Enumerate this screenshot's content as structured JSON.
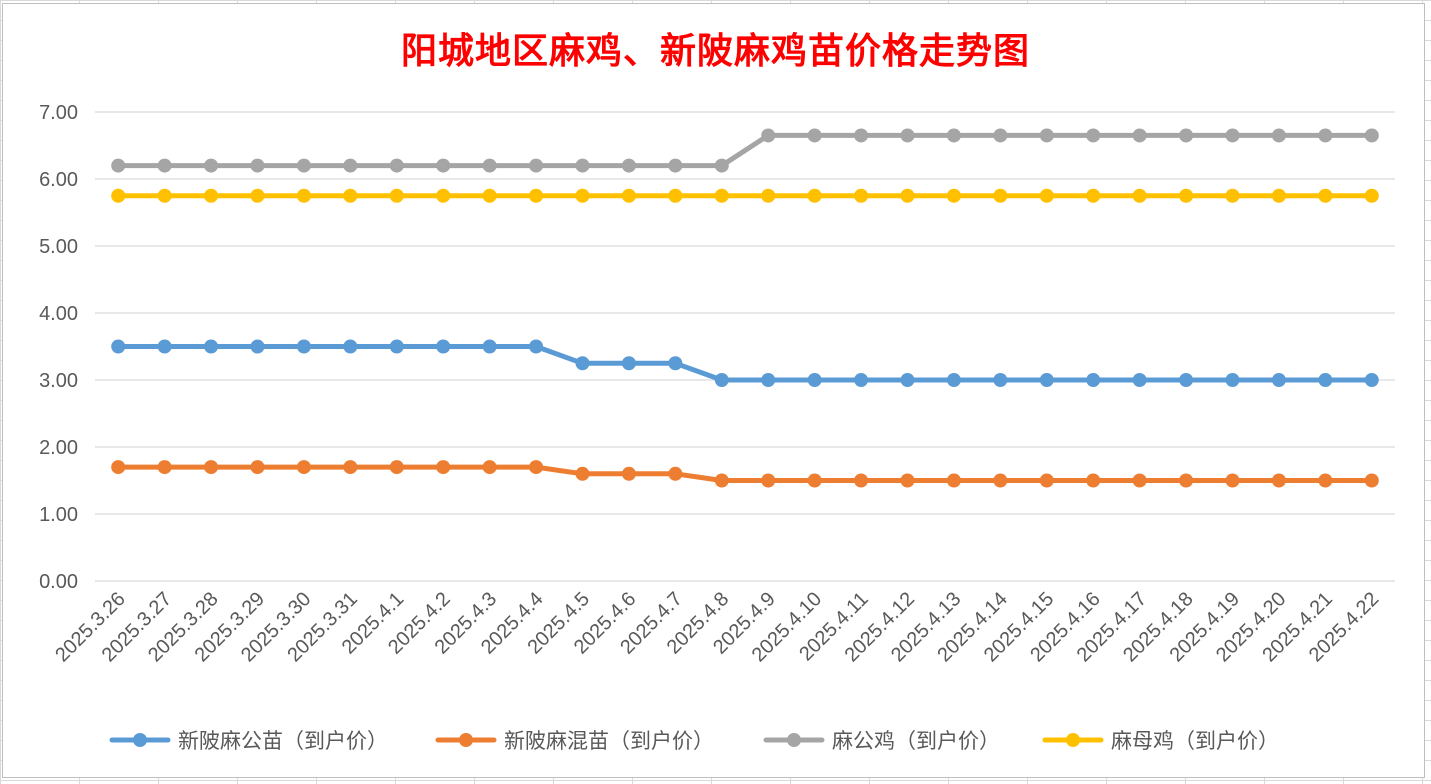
{
  "chart_data": {
    "type": "line",
    "title": "阳城地区麻鸡、新陂麻鸡苗价格走势图",
    "xlabel": "",
    "ylabel": "",
    "ylim": [
      0,
      7
    ],
    "y_ticks": [
      "0.00",
      "1.00",
      "2.00",
      "3.00",
      "4.00",
      "5.00",
      "6.00",
      "7.00"
    ],
    "grid": true,
    "legend_position": "bottom",
    "categories": [
      "2025.3.26",
      "2025.3.27",
      "2025.3.28",
      "2025.3.29",
      "2025.3.30",
      "2025.3.31",
      "2025.4.1",
      "2025.4.2",
      "2025.4.3",
      "2025.4.4",
      "2025.4.5",
      "2025.4.6",
      "2025.4.7",
      "2025.4.8",
      "2025.4.9",
      "2025.4.10",
      "2025.4.11",
      "2025.4.12",
      "2025.4.13",
      "2025.4.14",
      "2025.4.15",
      "2025.4.16",
      "2025.4.17",
      "2025.4.18",
      "2025.4.19",
      "2025.4.20",
      "2025.4.21",
      "2025.4.22"
    ],
    "series": [
      {
        "name": "新陂麻公苗（到户价）",
        "color": "#5b9bd5",
        "values": [
          3.5,
          3.5,
          3.5,
          3.5,
          3.5,
          3.5,
          3.5,
          3.5,
          3.5,
          3.5,
          3.25,
          3.25,
          3.25,
          3.0,
          3.0,
          3.0,
          3.0,
          3.0,
          3.0,
          3.0,
          3.0,
          3.0,
          3.0,
          3.0,
          3.0,
          3.0,
          3.0,
          3.0
        ]
      },
      {
        "name": "新陂麻混苗（到户价）",
        "color": "#ed7d31",
        "values": [
          1.7,
          1.7,
          1.7,
          1.7,
          1.7,
          1.7,
          1.7,
          1.7,
          1.7,
          1.7,
          1.6,
          1.6,
          1.6,
          1.5,
          1.5,
          1.5,
          1.5,
          1.5,
          1.5,
          1.5,
          1.5,
          1.5,
          1.5,
          1.5,
          1.5,
          1.5,
          1.5,
          1.5
        ]
      },
      {
        "name": "麻公鸡（到户价）",
        "color": "#a5a5a5",
        "values": [
          6.2,
          6.2,
          6.2,
          6.2,
          6.2,
          6.2,
          6.2,
          6.2,
          6.2,
          6.2,
          6.2,
          6.2,
          6.2,
          6.2,
          6.65,
          6.65,
          6.65,
          6.65,
          6.65,
          6.65,
          6.65,
          6.65,
          6.65,
          6.65,
          6.65,
          6.65,
          6.65,
          6.65
        ]
      },
      {
        "name": "麻母鸡（到户价）",
        "color": "#ffc000",
        "values": [
          5.75,
          5.75,
          5.75,
          5.75,
          5.75,
          5.75,
          5.75,
          5.75,
          5.75,
          5.75,
          5.75,
          5.75,
          5.75,
          5.75,
          5.75,
          5.75,
          5.75,
          5.75,
          5.75,
          5.75,
          5.75,
          5.75,
          5.75,
          5.75,
          5.75,
          5.75,
          5.75,
          5.75
        ]
      }
    ]
  },
  "colors": {
    "title": "#ff0000",
    "gridline": "#d9d9d9",
    "axis_text": "#595959"
  }
}
